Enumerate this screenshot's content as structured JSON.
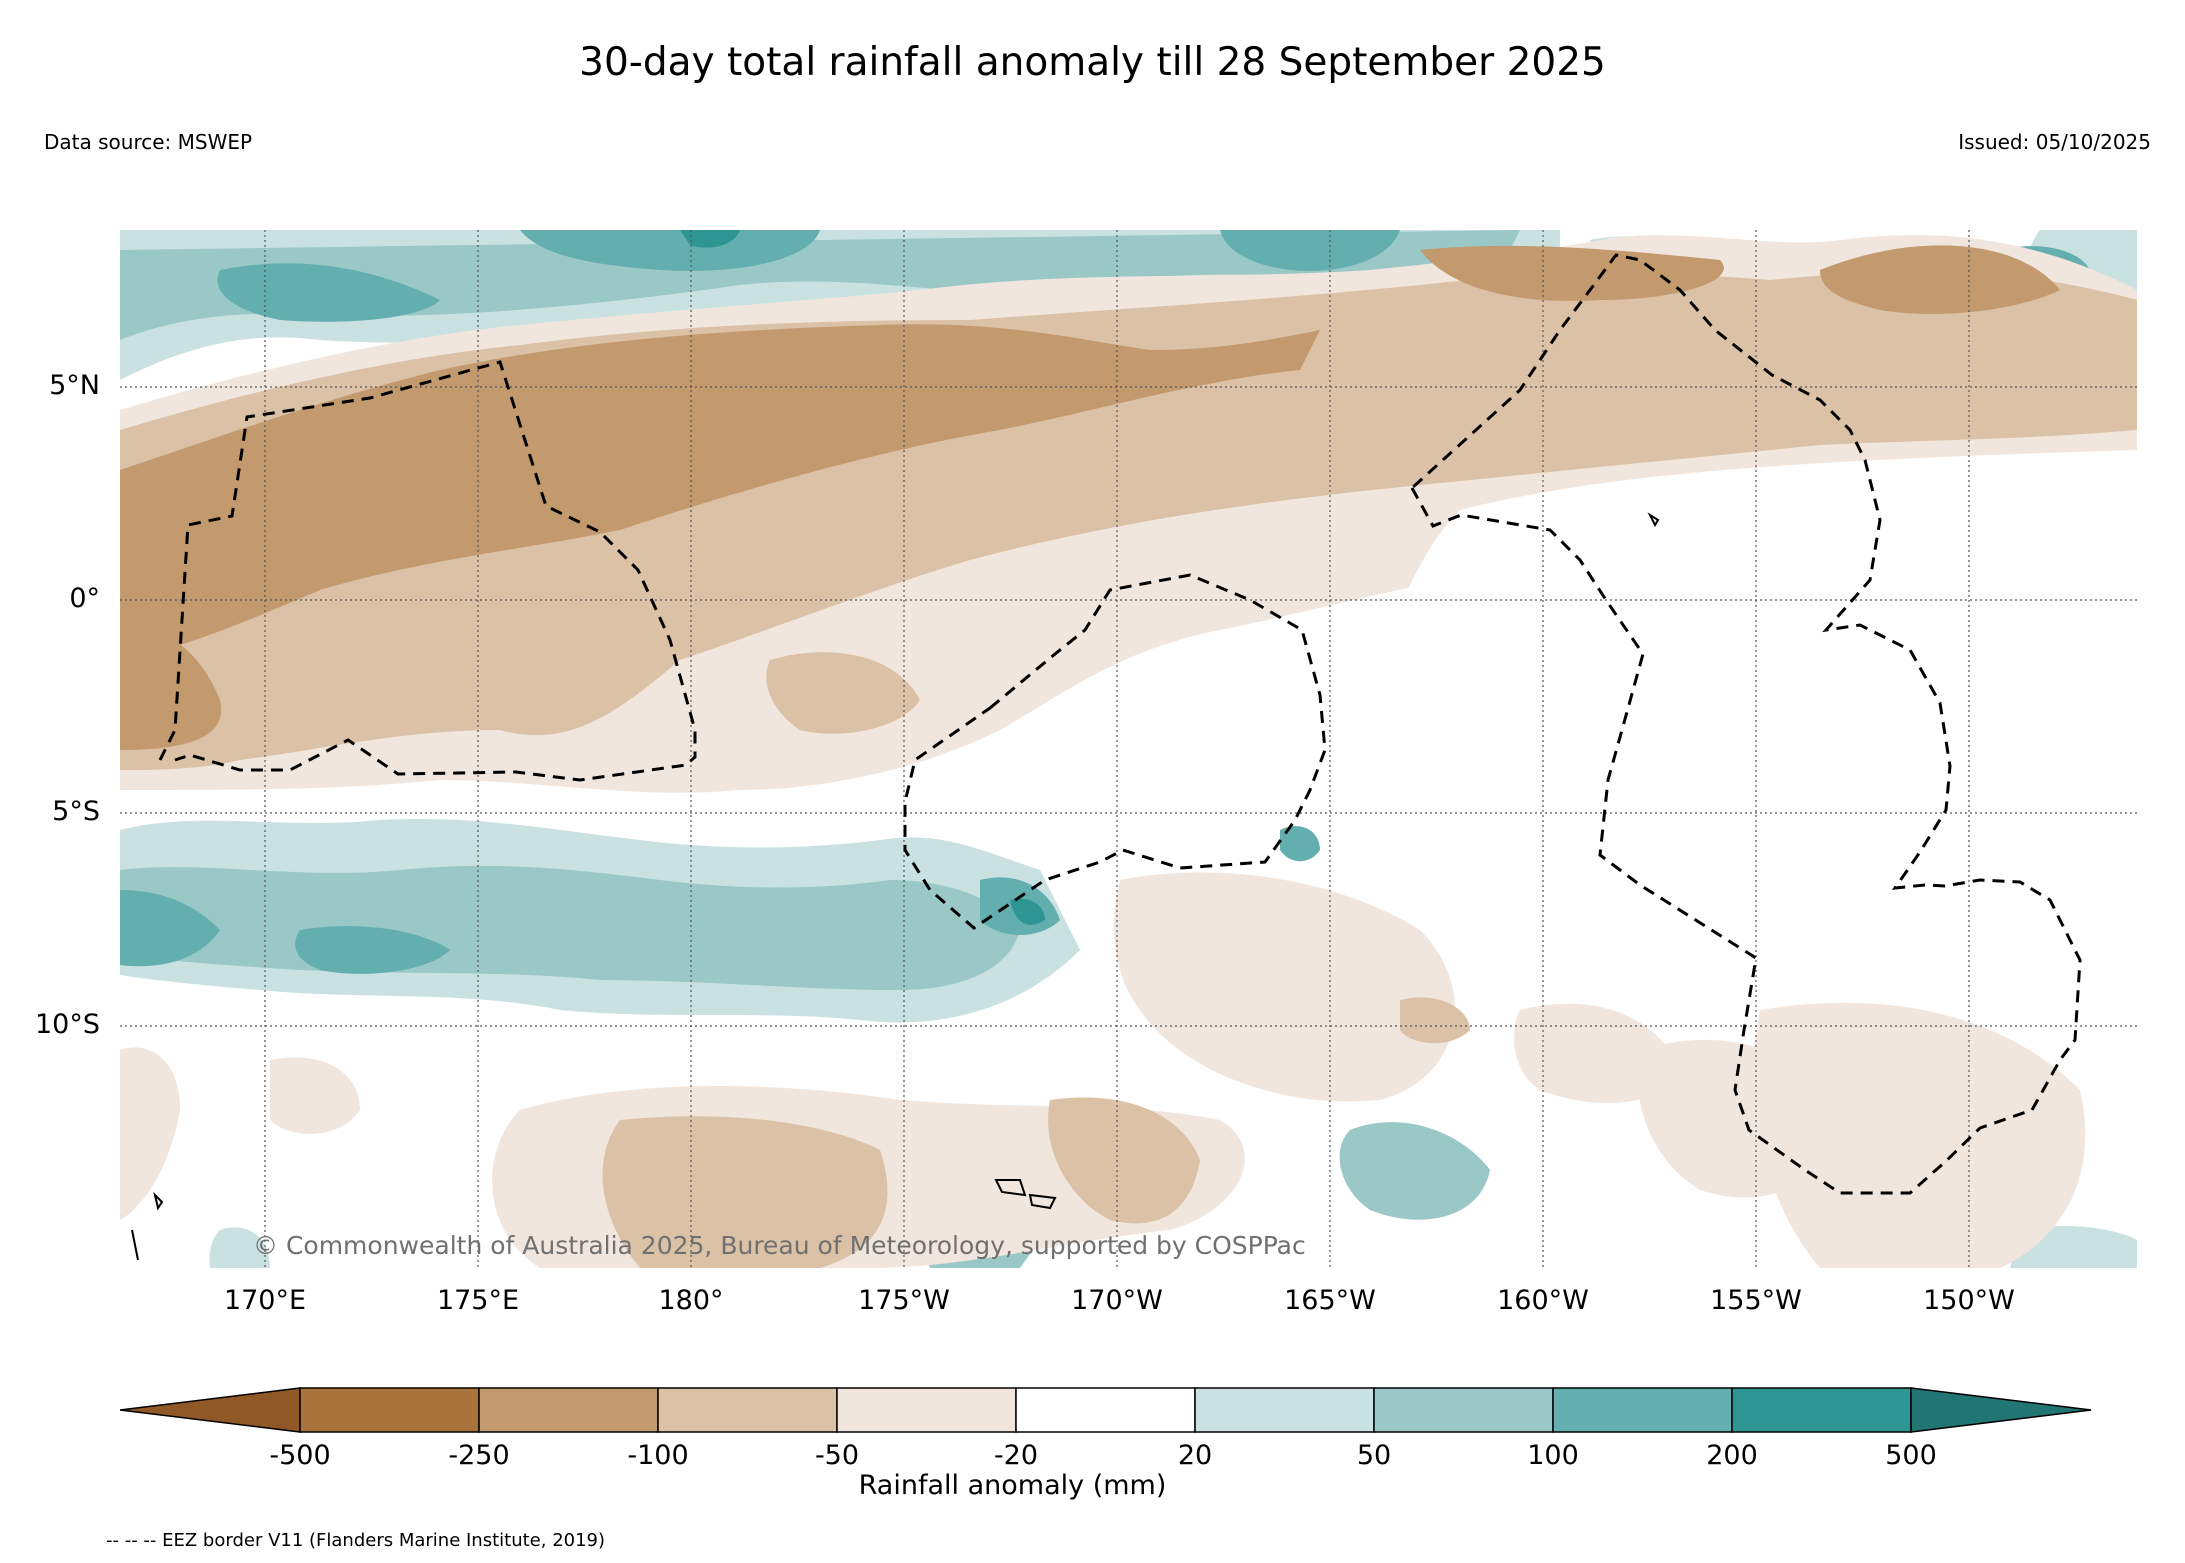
{
  "title": "30-day total rainfall anomaly till 28 September 2025",
  "data_source": "Data source: MSWEP",
  "issued": "Issued: 05/10/2025",
  "copyright": "© Commonwealth of Australia 2025, Bureau of Meteorology, supported by COSPPac",
  "footer_note": "-- -- -- EEZ border V11 (Flanders Marine Institute, 2019)",
  "map": {
    "lon_range": [
      166.6,
      213.9
    ],
    "lat_range": [
      -15.8,
      8.6
    ],
    "lat_labels": [
      "5°N",
      "0°",
      "5°S",
      "10°S"
    ],
    "lon_labels": [
      "170°E",
      "175°E",
      "180°",
      "175°W",
      "170°W",
      "165°W",
      "160°W",
      "155°W",
      "150°W"
    ]
  },
  "colorbar": {
    "title": "Rainfall anomaly (mm)",
    "ticks": [
      "-500",
      "-250",
      "-100",
      "-50",
      "-20",
      "20",
      "50",
      "100",
      "200",
      "500"
    ],
    "colors": {
      "below_-500": "#8f5826",
      "-500_-250": "#a9733b",
      "-250_-100": "#c29a6e",
      "-100_-50": "#dbc1a6",
      "-50_-20": "#f1e6dd",
      "-20_20": "#ffffff",
      "20_50": "#c9e2e1",
      "50_100": "#99c8c7",
      "100_200": "#63aeae",
      "200_500": "#2e9692",
      "above_500": "#217573"
    }
  }
}
